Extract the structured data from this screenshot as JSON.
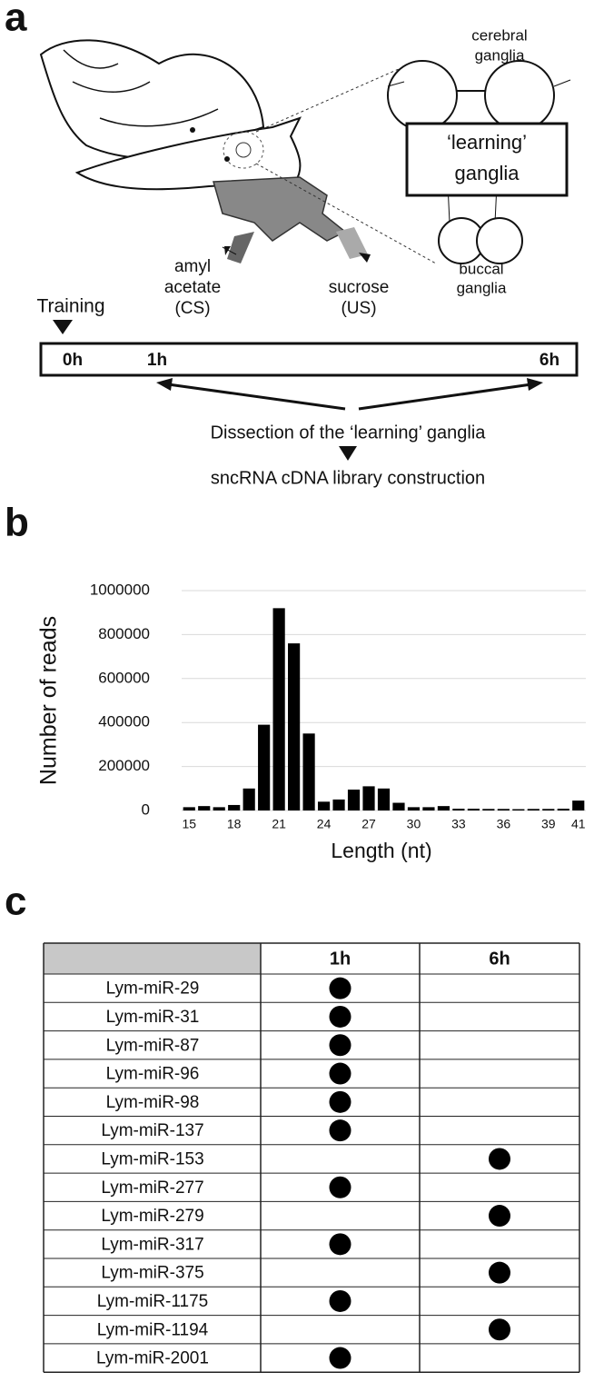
{
  "panel_a": {
    "label": "a",
    "cerebral": [
      "cerebral",
      "ganglia"
    ],
    "learning_box": [
      "‘learning’",
      "ganglia"
    ],
    "buccal": [
      "buccal",
      "ganglia"
    ],
    "amyl": [
      "amyl",
      "acetate",
      "(CS)"
    ],
    "sucrose": [
      "sucrose",
      "(US)"
    ],
    "training": "Training",
    "timeline": [
      "0h",
      "1h",
      "6h"
    ],
    "dissection": "Dissection of the ‘learning’ ganglia",
    "library": "sncRNA cDNA library construction"
  },
  "panel_b": {
    "label": "b"
  },
  "chart_data": {
    "type": "bar",
    "categories": [
      "15",
      null,
      null,
      "18",
      null,
      null,
      "21",
      null,
      null,
      "24",
      null,
      null,
      "27",
      null,
      null,
      "30",
      null,
      null,
      "33",
      null,
      null,
      "36",
      null,
      null,
      "39",
      null,
      "41"
    ],
    "values": [
      15000,
      20000,
      15000,
      25000,
      100000,
      390000,
      920000,
      760000,
      350000,
      40000,
      50000,
      95000,
      110000,
      100000,
      35000,
      15000,
      15000,
      20000,
      8000,
      8000,
      7000,
      7000,
      6000,
      7000,
      7000,
      8000,
      45000
    ],
    "color": "#000000",
    "ylim": [
      0,
      1000000
    ],
    "yticks": [
      0,
      200000,
      400000,
      600000,
      800000,
      1000000
    ],
    "grid": true,
    "xlabel": "Length (nt)",
    "ylabel": "Number of reads"
  },
  "panel_c": {
    "label": "c",
    "table": {
      "columns": [
        "1h",
        "6h"
      ],
      "rows": [
        {
          "name": "Lym-miR-29",
          "marks": [
            true,
            false
          ]
        },
        {
          "name": "Lym-miR-31",
          "marks": [
            true,
            false
          ]
        },
        {
          "name": "Lym-miR-87",
          "marks": [
            true,
            false
          ]
        },
        {
          "name": "Lym-miR-96",
          "marks": [
            true,
            false
          ]
        },
        {
          "name": "Lym-miR-98",
          "marks": [
            true,
            false
          ]
        },
        {
          "name": "Lym-miR-137",
          "marks": [
            true,
            false
          ]
        },
        {
          "name": "Lym-miR-153",
          "marks": [
            false,
            true
          ]
        },
        {
          "name": "Lym-miR-277",
          "marks": [
            true,
            false
          ]
        },
        {
          "name": "Lym-miR-279",
          "marks": [
            false,
            true
          ]
        },
        {
          "name": "Lym-miR-317",
          "marks": [
            true,
            false
          ]
        },
        {
          "name": "Lym-miR-375",
          "marks": [
            false,
            true
          ]
        },
        {
          "name": "Lym-miR-1175",
          "marks": [
            true,
            false
          ]
        },
        {
          "name": "Lym-miR-1194",
          "marks": [
            false,
            true
          ]
        },
        {
          "name": "Lym-miR-2001",
          "marks": [
            true,
            false
          ]
        }
      ]
    }
  }
}
